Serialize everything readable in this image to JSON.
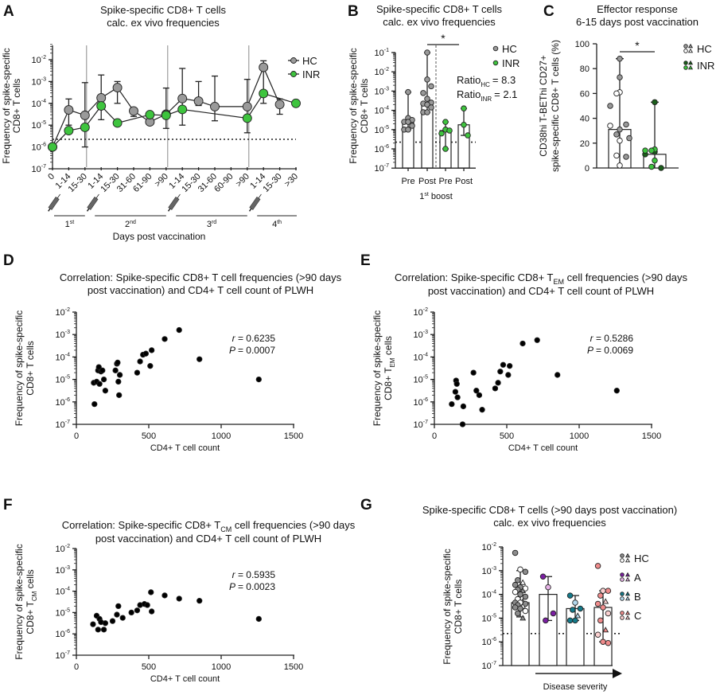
{
  "panel_letters": [
    "A",
    "B",
    "C",
    "D",
    "E",
    "F",
    "G"
  ],
  "chart_data": [
    {
      "id": "A",
      "type": "line",
      "title": [
        "Spike-specific CD8+ T cells",
        "calc. ex vivo frequencies"
      ],
      "ylabel": [
        "Frequency of spike-specific",
        "CD8+ T cells"
      ],
      "xlabel": "Days post vaccination",
      "yscale": "log",
      "ylim_exp": [
        -7,
        -2
      ],
      "categories": [
        "0",
        "1-14",
        "15-30",
        "1-14",
        "15-30",
        "31-60",
        "61-90",
        ">90",
        "1-14",
        "15-30",
        "31-60",
        "60-90",
        ">90",
        "1-14",
        "15-30",
        ">30"
      ],
      "vaccinations": [
        {
          "label": "1",
          "sup": "st"
        },
        {
          "label": "2",
          "sup": "nd"
        },
        {
          "label": "3",
          "sup": "rd"
        },
        {
          "label": "4",
          "sup": "th"
        }
      ],
      "detection_limit_log10": -5.65,
      "series": [
        {
          "name": "HC",
          "color": "#9a9a9a",
          "log10": [
            -6,
            -4.3,
            -4.55,
            -3.75,
            -3.28,
            -4.35,
            -4.85,
            -4.5,
            -3.78,
            -3.9,
            -4.15,
            null,
            -4.15,
            -2.35,
            -4.05,
            null
          ],
          "err": [
            null,
            [
              -5.0,
              -3.8
            ],
            [
              -6.0,
              -3.05
            ],
            [
              -4.75,
              -2.7
            ],
            [
              -4.0,
              -3.0
            ],
            [
              -4.6,
              -4.35
            ],
            null,
            [
              -5.15,
              -3.3
            ],
            [
              -5.0,
              -2.4
            ],
            [
              -4.1,
              -3.0
            ],
            [
              -4.8,
              -2.75
            ],
            null,
            [
              -5.35,
              -2.9
            ],
            [
              -4.0,
              -2.05
            ],
            [
              -4.5,
              -3.8
            ],
            null
          ]
        },
        {
          "name": "INR",
          "color": "#3ec43e",
          "log10": [
            -6,
            -5.25,
            -5.1,
            -4.12,
            -4.9,
            null,
            -4.52,
            -4.55,
            -4.28,
            null,
            null,
            null,
            -4.68,
            -3.55,
            null,
            -4.0
          ]
        }
      ]
    },
    {
      "id": "B",
      "type": "bar",
      "title": [
        "Spike-specific CD8+ T cells",
        "calc. ex vivo frequencies"
      ],
      "ylabel": [
        "Frequency of spike-specific",
        "CD8+ T cells"
      ],
      "xlabel": {
        "pre": "1",
        "sup": "st",
        "post": " boost"
      },
      "yscale": "log",
      "ylim_exp": [
        -7,
        -1
      ],
      "categories": [
        "Pre",
        "Post",
        "Pre",
        "Post"
      ],
      "detection_limit_log10": -5.65,
      "significance": "*",
      "ratios": [
        {
          "label": "Ratio",
          "sub": "HC",
          "value": "= 8.3"
        },
        {
          "label": "Ratio",
          "sub": "INR",
          "value": "= 2.1"
        }
      ],
      "series": [
        {
          "name": "HC",
          "color": "#9a9a9a",
          "groups": [
            {
              "median": -4.6,
              "points": [
                -3.05,
                -4.4,
                -4.5,
                -4.6,
                -4.6,
                -4.8,
                -5.0,
                -5.0
              ]
            },
            {
              "median": -3.65,
              "points": [
                -1.0,
                -2.4,
                -2.75,
                -3.1,
                -3.4,
                -3.6,
                -3.65,
                -3.7,
                -3.85,
                -4.1,
                -4.1
              ]
            }
          ]
        },
        {
          "name": "INR",
          "color": "#3ec43e",
          "groups": [
            {
              "median": -5.05,
              "points": [
                -4.6,
                -5.0,
                -5.05,
                -5.2,
                -6.0
              ]
            },
            {
              "median": -4.75,
              "points": [
                -3.9,
                -4.75,
                -5.3
              ]
            }
          ]
        }
      ]
    },
    {
      "id": "C",
      "type": "bar",
      "title": [
        "Effector response",
        "6-15 days post vaccination"
      ],
      "ylabel": [
        "CD38hi T-BEThi CD27+",
        "spike-specific CD8+ T cells (%)"
      ],
      "ylim": [
        0,
        100
      ],
      "yticks": [
        0,
        20,
        40,
        60,
        80,
        100
      ],
      "significance": "*",
      "series": [
        {
          "name": "HC",
          "color": "#9a9a9a",
          "light": "#ffffff",
          "median": 31,
          "filled": [
            88,
            73,
            50,
            35,
            31,
            27,
            24,
            9
          ],
          "open": [
            61,
            60,
            34,
            22,
            10,
            2
          ]
        },
        {
          "name": "INR",
          "color": "#1a5e1a",
          "light": "#3ec43e",
          "median": 11,
          "filled": [
            53,
            13,
            11,
            0
          ],
          "open": [
            15,
            14,
            14,
            6,
            1
          ]
        }
      ]
    },
    {
      "id": "D",
      "type": "scatter",
      "title": [
        "Correlation: Spike-specific CD8+ T cell frequencies (>90 days",
        "post vaccination) and CD4+ T cell count of PLWH"
      ],
      "ylabel": [
        "Frequency of spike-specific",
        "CD8+ T cells"
      ],
      "xlabel": "CD4+ T cell count",
      "xlim": [
        0,
        1500
      ],
      "xticks": [
        0,
        500,
        1000,
        1500
      ],
      "yscale": "log",
      "ylim_exp": [
        -7,
        -2
      ],
      "r": "= 0.6235",
      "P": "= 0.0007",
      "points": [
        [
          120,
          -5.15
        ],
        [
          125,
          -6.1
        ],
        [
          140,
          -5.1
        ],
        [
          150,
          -4.6
        ],
        [
          155,
          -4.45
        ],
        [
          160,
          -5.2
        ],
        [
          170,
          -4.65
        ],
        [
          180,
          -4.6
        ],
        [
          190,
          -5.0
        ],
        [
          200,
          -5.5
        ],
        [
          270,
          -4.6
        ],
        [
          280,
          -4.3
        ],
        [
          285,
          -4.25
        ],
        [
          290,
          -5.1
        ],
        [
          295,
          -5.7
        ],
        [
          300,
          -4.8
        ],
        [
          420,
          -4.7
        ],
        [
          440,
          -4.2
        ],
        [
          460,
          -3.9
        ],
        [
          480,
          -3.85
        ],
        [
          510,
          -4.4
        ],
        [
          520,
          -3.7
        ],
        [
          610,
          -3.2
        ],
        [
          710,
          -2.8
        ],
        [
          850,
          -4.1
        ],
        [
          1260,
          -5.0
        ]
      ]
    },
    {
      "id": "E",
      "type": "scatter",
      "title": [
        "Correlation: Spike-specific CD8+ T",
        "EM",
        " cell frequencies (>90 days",
        "post vaccination) and CD4+ T cell count of PLWH"
      ],
      "ylabel": [
        "Frequency of spike-specific",
        "CD8+ T",
        "EM",
        " cells"
      ],
      "xlabel": "CD4+ T cell count",
      "xlim": [
        0,
        1500
      ],
      "xticks": [
        0,
        500,
        1000,
        1500
      ],
      "yscale": "log",
      "ylim_exp": [
        -7,
        -2
      ],
      "r": "= 0.5286",
      "P": "= 0.0069",
      "points": [
        [
          120,
          -6.1
        ],
        [
          145,
          -5.55
        ],
        [
          150,
          -5.05
        ],
        [
          155,
          -5.2
        ],
        [
          160,
          -5.8
        ],
        [
          195,
          -7.0
        ],
        [
          200,
          -6.2
        ],
        [
          270,
          -4.7
        ],
        [
          290,
          -5.5
        ],
        [
          310,
          -5.7
        ],
        [
          330,
          -6.35
        ],
        [
          420,
          -5.4
        ],
        [
          440,
          -5.15
        ],
        [
          455,
          -4.65
        ],
        [
          475,
          -4.35
        ],
        [
          510,
          -4.8
        ],
        [
          520,
          -4.4
        ],
        [
          610,
          -3.4
        ],
        [
          710,
          -3.25
        ],
        [
          850,
          -4.8
        ],
        [
          1260,
          -5.5
        ]
      ]
    },
    {
      "id": "F",
      "type": "scatter",
      "title": [
        "Correlation: Spike-specific CD8+ T",
        "CM",
        " cell frequencies (>90 days",
        "post vaccination) and CD4+ T cell count of PLWH"
      ],
      "ylabel": [
        "Frequency of spike-specific",
        "CD8+ T",
        "CM",
        " cells"
      ],
      "xlabel": "CD4+ T cell count",
      "xlim": [
        0,
        1500
      ],
      "xticks": [
        0,
        500,
        1000,
        1500
      ],
      "yscale": "log",
      "ylim_exp": [
        -7,
        -2
      ],
      "r": "= 0.5935",
      "P": "= 0.0023",
      "points": [
        [
          115,
          -5.55
        ],
        [
          140,
          -5.15
        ],
        [
          150,
          -5.8
        ],
        [
          160,
          -5.3
        ],
        [
          170,
          -5.45
        ],
        [
          190,
          -5.8
        ],
        [
          200,
          -5.5
        ],
        [
          250,
          -5.4
        ],
        [
          280,
          -5.1
        ],
        [
          290,
          -4.7
        ],
        [
          320,
          -5.25
        ],
        [
          380,
          -5.0
        ],
        [
          420,
          -4.9
        ],
        [
          440,
          -4.65
        ],
        [
          470,
          -4.6
        ],
        [
          490,
          -4.65
        ],
        [
          515,
          -4.05
        ],
        [
          520,
          -4.95
        ],
        [
          610,
          -4.2
        ],
        [
          710,
          -4.35
        ],
        [
          850,
          -4.45
        ],
        [
          1260,
          -5.3
        ]
      ]
    },
    {
      "id": "G",
      "type": "bar",
      "title": [
        "Spike-specific CD8+ T cells (>90 days post vaccination)",
        "calc. ex vivo frequencies"
      ],
      "ylabel": [
        "Frequency of spike-specific",
        "CD8+ T cells"
      ],
      "xlabel": "Disease severity",
      "yscale": "log",
      "ylim_exp": [
        -7,
        -2
      ],
      "detection_limit_log10": -5.65,
      "series": [
        {
          "name": "HC",
          "color": "#8c8c8c",
          "light": "#ffffff",
          "median": -4.35,
          "range": [
            -4.95,
            -3.0
          ],
          "points": [
            -2.25,
            -2.95,
            -3.05,
            -3.4,
            -3.5,
            -3.6,
            -3.7,
            -3.75,
            -3.8,
            -3.85,
            -3.9,
            -4.0,
            -4.1,
            -4.2,
            -4.3,
            -4.35,
            -4.35,
            -4.4,
            -4.45,
            -4.5,
            -4.55,
            -4.6,
            -4.7,
            -4.8,
            -5.0
          ]
        },
        {
          "name": "A",
          "color": "#7b1fa2",
          "light": "#e6b3e6",
          "median": -4.0,
          "range": [
            -5.1,
            -3.25
          ],
          "points": [
            -3.25,
            -3.7,
            -4.8,
            -5.1
          ]
        },
        {
          "name": "B",
          "color": "#147a8a",
          "light": "#b3d9ee",
          "median": -4.6,
          "range": [
            -5.1,
            -4.05
          ],
          "points": [
            -4.05,
            -4.35,
            -4.6,
            -4.65,
            -4.9,
            -5.1,
            -5.1
          ]
        },
        {
          "name": "C",
          "color": "#f08c8c",
          "light": "#fbd0d0",
          "median": -4.55,
          "range": [
            -6.0,
            -3.85
          ],
          "points": [
            -2.8,
            -3.85,
            -3.85,
            -4.05,
            -4.3,
            -4.4,
            -4.55,
            -4.8,
            -5.1,
            -5.5,
            -5.7,
            -6.0,
            -6.05
          ]
        }
      ]
    }
  ]
}
